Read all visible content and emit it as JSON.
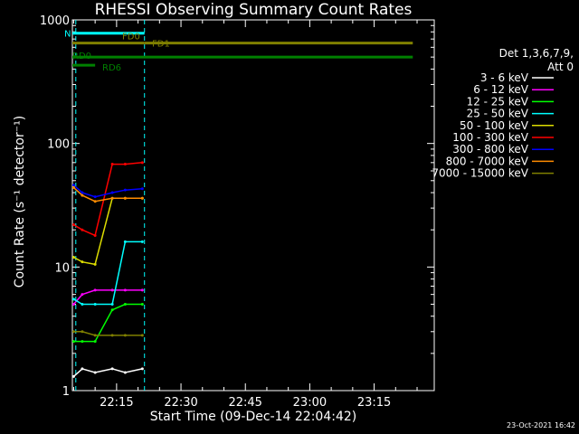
{
  "chart_data": {
    "type": "line",
    "title": "RHESSI Observing Summary Count Rates",
    "xlabel": "Start Time (09-Dec-14 22:04:42)",
    "ylabel": "Count Rate (s⁻¹ detector⁻¹)",
    "yscale": "log",
    "ylim": [
      1,
      1000
    ],
    "xlim": [
      "22:04:42",
      "23:29:00"
    ],
    "x_ticks": [
      "22:15",
      "22:30",
      "22:45",
      "23:00",
      "23:15"
    ],
    "y_ticks": [
      "1",
      "10",
      "100",
      "1000"
    ],
    "grid": false,
    "legend_placement": "right",
    "legend_header": [
      "Det 1,3,6,7,9,",
      "Att 0"
    ],
    "series": [
      {
        "name": "3 - 6 keV",
        "color": "#ffffff",
        "x": [
          "22:05:00",
          "22:07:00",
          "22:10:00",
          "22:14:00",
          "22:17:00",
          "22:21:00"
        ],
        "values": [
          1.3,
          1.5,
          1.4,
          1.5,
          1.4,
          1.5
        ]
      },
      {
        "name": "6 - 12 keV",
        "color": "#ff00ff",
        "x": [
          "22:05:00",
          "22:07:00",
          "22:10:00",
          "22:14:00",
          "22:17:00",
          "22:21:00"
        ],
        "values": [
          5.0,
          6.0,
          6.5,
          6.5,
          6.5,
          6.5
        ]
      },
      {
        "name": "12 - 25 keV",
        "color": "#00ff00",
        "x": [
          "22:05:00",
          "22:07:00",
          "22:10:00",
          "22:14:00",
          "22:17:00",
          "22:21:00"
        ],
        "values": [
          2.5,
          2.5,
          2.5,
          4.5,
          5.0,
          5.0
        ]
      },
      {
        "name": "25 - 50 keV",
        "color": "#00ffff",
        "x": [
          "22:05:00",
          "22:07:00",
          "22:10:00",
          "22:14:00",
          "22:17:00",
          "22:21:00"
        ],
        "values": [
          5.5,
          5.0,
          5.0,
          5.0,
          16,
          16
        ]
      },
      {
        "name": "50 - 100 keV",
        "color": "#dddd00",
        "x": [
          "22:05:00",
          "22:07:00",
          "22:10:00",
          "22:14:00",
          "22:17:00",
          "22:21:00"
        ],
        "values": [
          12,
          11,
          10.5,
          36,
          36,
          36
        ]
      },
      {
        "name": "100 - 300 keV",
        "color": "#ff0000",
        "x": [
          "22:05:00",
          "22:07:00",
          "22:10:00",
          "22:14:00",
          "22:17:00",
          "22:21:00"
        ],
        "values": [
          22,
          20,
          18,
          68,
          68,
          70
        ]
      },
      {
        "name": "300 - 800 keV",
        "color": "#0000ff",
        "x": [
          "22:05:00",
          "22:07:00",
          "22:10:00",
          "22:14:00",
          "22:17:00",
          "22:21:00"
        ],
        "values": [
          46,
          40,
          37,
          40,
          42,
          43
        ]
      },
      {
        "name": "800 - 7000 keV",
        "color": "#ff8c00",
        "x": [
          "22:05:00",
          "22:07:00",
          "22:10:00",
          "22:14:00",
          "22:17:00",
          "22:21:00"
        ],
        "values": [
          44,
          38,
          34,
          36,
          36,
          36
        ]
      },
      {
        "name": "7000 - 15000 keV",
        "color": "#808000",
        "x": [
          "22:05:00",
          "22:07:00",
          "22:10:00",
          "22:14:00",
          "22:17:00",
          "22:21:00"
        ],
        "values": [
          3.0,
          3.0,
          2.8,
          2.8,
          2.8,
          2.8
        ]
      }
    ],
    "flag_bars": [
      {
        "label": "N",
        "color": "#00ffff",
        "x0": "22:04:42",
        "x1": "22:21:30",
        "y": 780
      },
      {
        "label": "FD0",
        "color": "#808000",
        "x0": "22:04:42",
        "x1": "22:21:30",
        "y": 650
      },
      {
        "label": "FD1",
        "color": "#808000",
        "x0": "22:21:30",
        "x1": "23:24:00",
        "y": 650
      },
      {
        "label": "RD0",
        "color": "#008000",
        "x0": "22:04:42",
        "x1": "23:24:00",
        "y": 500
      },
      {
        "label": "RD6",
        "color": "#008000",
        "x0": "22:04:42",
        "x1": "22:10:00",
        "y": 430
      }
    ],
    "vlines": [
      {
        "x": "22:05:30",
        "color": "#00ffff"
      },
      {
        "x": "22:21:30",
        "color": "#00ffff"
      }
    ]
  },
  "footer": "23-Oct-2021 16:42"
}
